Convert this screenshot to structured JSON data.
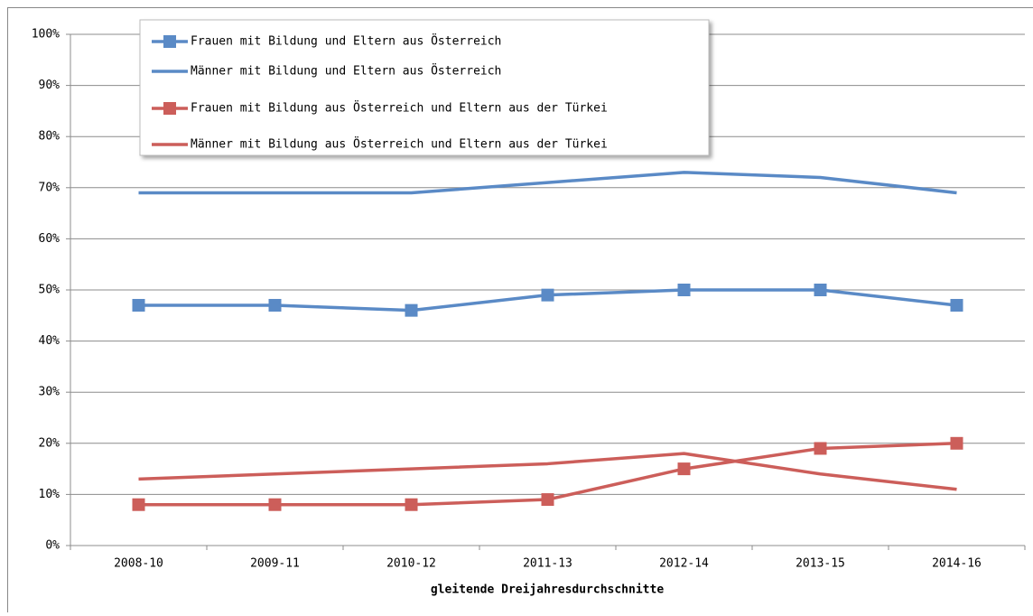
{
  "chart_data": {
    "type": "line",
    "x_label": "gleitende Dreijahresdurchschnitte",
    "categories": [
      "2008-10",
      "2009-11",
      "2010-12",
      "2011-13",
      "2012-14",
      "2013-15",
      "2014-16"
    ],
    "series": [
      {
        "name": "Frauen mit Bildung und Eltern aus Österreich",
        "color": "#5a8ac6",
        "markers": true,
        "values": [
          47,
          47,
          46,
          49,
          50,
          50,
          47
        ]
      },
      {
        "name": "Männer mit Bildung und Eltern aus Österreich",
        "color": "#5a8ac6",
        "markers": false,
        "values": [
          69,
          69,
          69,
          71,
          73,
          72,
          69
        ]
      },
      {
        "name": "Frauen mit Bildung aus Österreich und Eltern aus der Türkei",
        "color": "#cc5e5a",
        "markers": true,
        "values": [
          8,
          8,
          8,
          9,
          15,
          19,
          20
        ]
      },
      {
        "name": "Männer mit Bildung aus Österreich und Eltern aus der Türkei",
        "color": "#cc5e5a",
        "markers": false,
        "values": [
          13,
          14,
          15,
          16,
          18,
          14,
          11
        ]
      }
    ],
    "ylim": [
      0,
      100
    ],
    "yticks": [
      {
        "value": 0,
        "label": "0%"
      },
      {
        "value": 10,
        "label": "10%"
      },
      {
        "value": 20,
        "label": "20%"
      },
      {
        "value": 30,
        "label": "30%"
      },
      {
        "value": 40,
        "label": "40%"
      },
      {
        "value": 50,
        "label": "50%"
      },
      {
        "value": 60,
        "label": "60%"
      },
      {
        "value": 70,
        "label": "70%"
      },
      {
        "value": 80,
        "label": "80%"
      },
      {
        "value": 90,
        "label": "90%"
      },
      {
        "value": 100,
        "label": "100%"
      }
    ],
    "grid": true,
    "legend": "top-left"
  }
}
